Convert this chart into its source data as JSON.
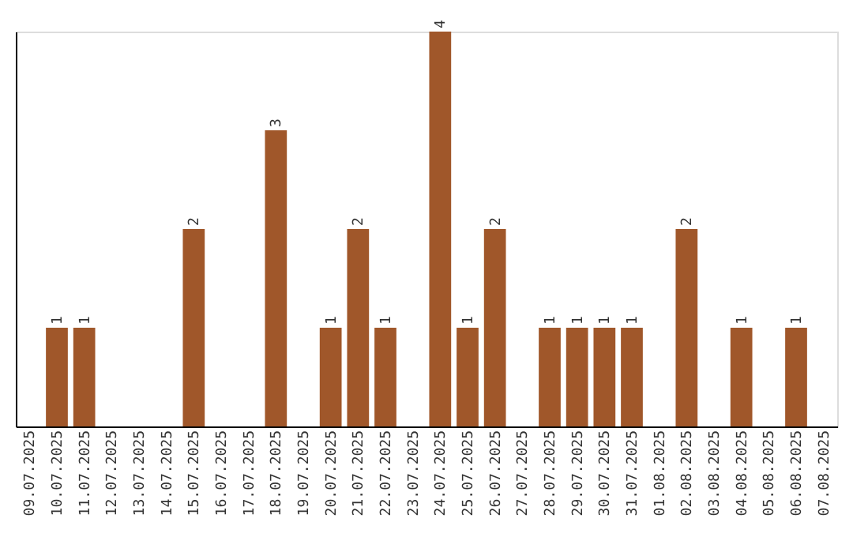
{
  "chart_data": {
    "type": "bar",
    "categories": [
      "09.07.2025",
      "10.07.2025",
      "11.07.2025",
      "12.07.2025",
      "13.07.2025",
      "14.07.2025",
      "15.07.2025",
      "16.07.2025",
      "17.07.2025",
      "18.07.2025",
      "19.07.2025",
      "20.07.2025",
      "21.07.2025",
      "22.07.2025",
      "23.07.2025",
      "24.07.2025",
      "25.07.2025",
      "26.07.2025",
      "27.07.2025",
      "28.07.2025",
      "29.07.2025",
      "30.07.2025",
      "31.07.2025",
      "01.08.2025",
      "02.08.2025",
      "03.08.2025",
      "04.08.2025",
      "05.08.2025",
      "06.08.2025",
      "07.08.2025"
    ],
    "values": [
      0,
      1,
      1,
      0,
      0,
      0,
      2,
      0,
      0,
      3,
      0,
      1,
      2,
      1,
      0,
      4,
      1,
      2,
      0,
      1,
      1,
      1,
      1,
      0,
      2,
      0,
      1,
      0,
      1,
      0
    ],
    "color": "#a0572a",
    "ylim": [
      0,
      4
    ],
    "value_labels": [
      null,
      "1",
      "1",
      null,
      null,
      null,
      "2",
      null,
      null,
      "3",
      null,
      "1",
      "2",
      "1",
      null,
      "4",
      "1",
      "2",
      null,
      "1",
      "1",
      "1",
      "1",
      null,
      "2",
      null,
      "1",
      null,
      "1",
      null
    ],
    "tick_labels": "x"
  }
}
